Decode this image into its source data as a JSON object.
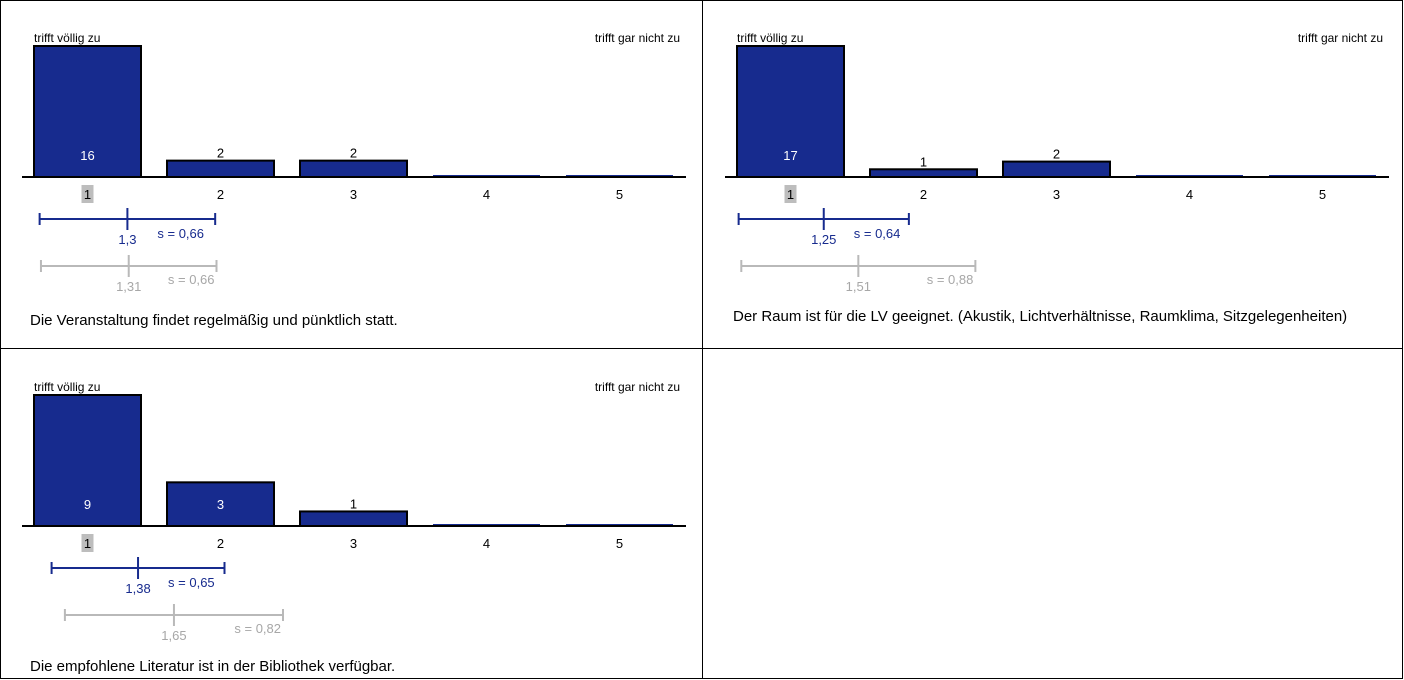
{
  "chart_data": [
    {
      "type": "bar",
      "scale_left_label": "trifft völlig zu",
      "scale_right_label": "trifft gar nicht zu",
      "categories": [
        "1",
        "2",
        "3",
        "4",
        "5"
      ],
      "highlighted_category": "1",
      "values": [
        16,
        2,
        2,
        0,
        0
      ],
      "data_labels": [
        "16",
        "2",
        "2",
        "",
        ""
      ],
      "ylim": [
        0,
        16
      ],
      "mean": 1.3,
      "mean_label": "1,3",
      "sd_label": "s = 0,66",
      "sd": 0.66,
      "comparison_mean": 1.31,
      "comparison_mean_label": "1,31",
      "comparison_sd_label": "s = 0,66",
      "comparison_sd": 0.66,
      "question": "Die Veranstaltung findet regelmäßig und pünktlich statt."
    },
    {
      "type": "bar",
      "scale_left_label": "trifft völlig zu",
      "scale_right_label": "trifft gar nicht zu",
      "categories": [
        "1",
        "2",
        "3",
        "4",
        "5"
      ],
      "highlighted_category": "1",
      "values": [
        17,
        1,
        2,
        0,
        0
      ],
      "data_labels": [
        "17",
        "1",
        "2",
        "",
        ""
      ],
      "ylim": [
        0,
        17
      ],
      "mean": 1.25,
      "mean_label": "1,25",
      "sd_label": "s = 0,64",
      "sd": 0.64,
      "comparison_mean": 1.51,
      "comparison_mean_label": "1,51",
      "comparison_sd_label": "s = 0,88",
      "comparison_sd": 0.88,
      "question": "Der Raum ist für die LV geeignet. (Akustik, Lichtverhältnisse, Raumklima, Sitzgelegenheiten)"
    },
    {
      "type": "bar",
      "scale_left_label": "trifft völlig zu",
      "scale_right_label": "trifft gar nicht zu",
      "categories": [
        "1",
        "2",
        "3",
        "4",
        "5"
      ],
      "highlighted_category": "1",
      "values": [
        9,
        3,
        1,
        0,
        0
      ],
      "data_labels": [
        "9",
        "3",
        "1",
        "",
        ""
      ],
      "ylim": [
        0,
        9
      ],
      "mean": 1.38,
      "mean_label": "1,38",
      "sd_label": "s = 0,65",
      "sd": 0.65,
      "comparison_mean": 1.65,
      "comparison_mean_label": "1,65",
      "comparison_sd_label": "s = 0,82",
      "comparison_sd": 0.82,
      "question": "Die empfohlene Literatur ist in der Bibliothek verfügbar."
    }
  ],
  "colors": {
    "bar_fill": "#172b8e",
    "bar_stroke": "#000000",
    "mean_line": "#172b8e",
    "comparison_line": "#b9b9b9",
    "comparison_text": "#a7a7a7",
    "highlight_box": "#bdbdbd"
  }
}
